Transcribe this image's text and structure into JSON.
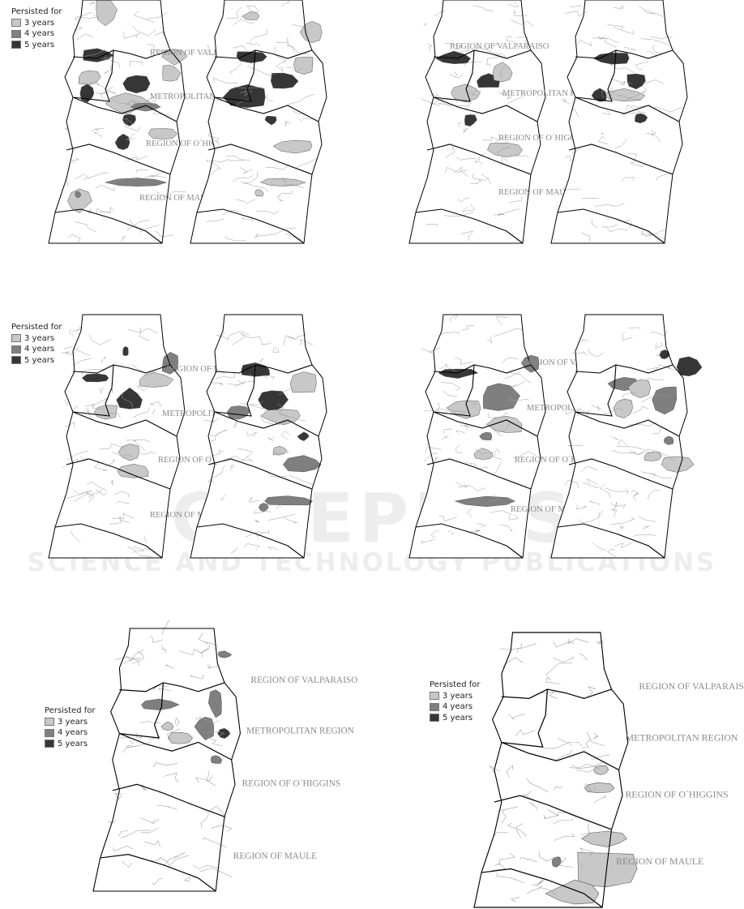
{
  "legend": {
    "title": "Persisted for",
    "items": [
      {
        "label": "3 years",
        "color": "#c8c8c8"
      },
      {
        "label": "4 years",
        "color": "#7f7f7f"
      },
      {
        "label": "5 years",
        "color": "#363636"
      }
    ]
  },
  "regions": {
    "valparaiso": "REGION OF VALPARAISO",
    "metropolitan": "METROPOLITAN REGION",
    "ohiggins": "REGION OF O´HIGGINS",
    "maule": "REGION OF MAULE"
  },
  "watermark": {
    "line1": "SCITEPRESS",
    "line2": "SCIENCE AND TECHNOLOGY PUBLICATIONS"
  },
  "colors": {
    "outline": "#000000",
    "commune_border": "#9a9a9a",
    "label": "#8a8a8a"
  }
}
